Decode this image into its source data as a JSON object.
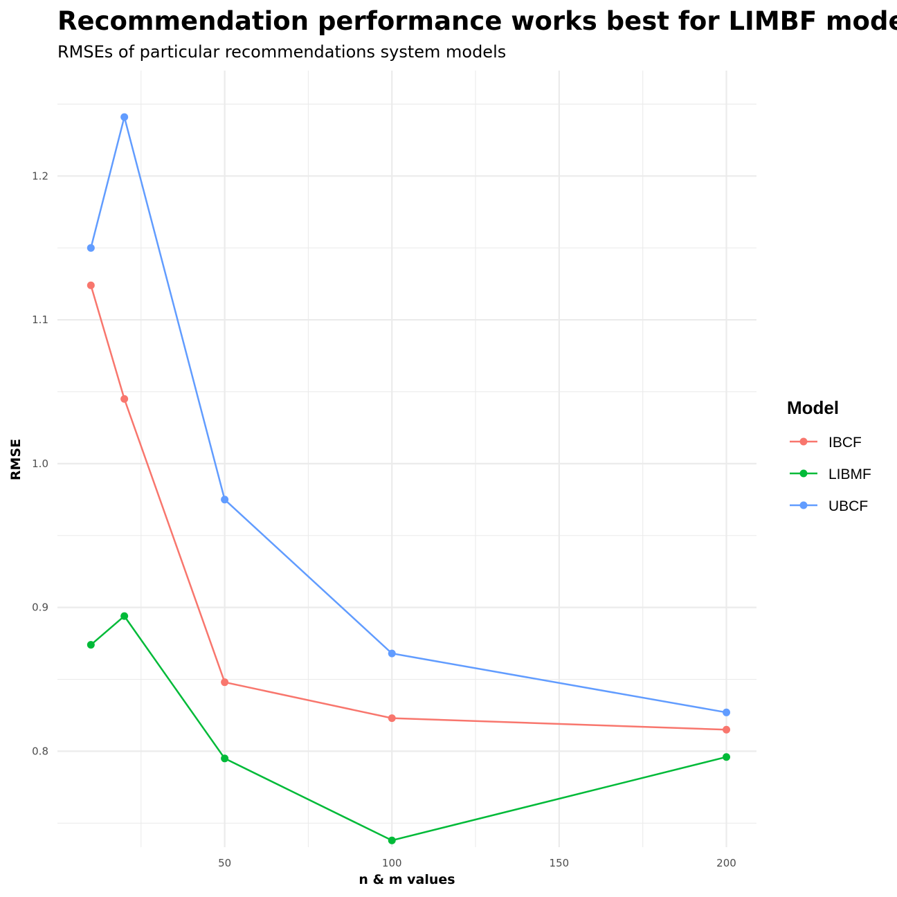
{
  "chart_data": {
    "type": "line",
    "title": "Recommendation performance works best for LIMBF model",
    "subtitle": "RMSEs of particular recommendations system models",
    "xlabel": "n & m values",
    "ylabel": "RMSE",
    "x": [
      10,
      20,
      50,
      100,
      200
    ],
    "xlim": [
      0,
      209
    ],
    "ylim": [
      0.7333,
      1.2733
    ],
    "x_ticks": [
      50,
      100,
      150,
      200
    ],
    "x_minor_ticks": [
      25,
      75,
      125,
      175
    ],
    "y_ticks": [
      0.8,
      0.9,
      1.0,
      1.1,
      1.2
    ],
    "y_minor_ticks": [
      0.75,
      0.85,
      0.95,
      1.05,
      1.15,
      1.25
    ],
    "x_tick_labels": [
      "50",
      "100",
      "150",
      "200"
    ],
    "y_tick_labels": [
      "0.8",
      "0.9",
      "1.0",
      "1.1",
      "1.2"
    ],
    "grid": true,
    "legend_title": "Model",
    "legend_position": "right",
    "series": [
      {
        "name": "IBCF",
        "color": "#F8766D",
        "values": [
          1.124,
          1.045,
          0.848,
          0.823,
          0.815
        ]
      },
      {
        "name": "LIBMF",
        "color": "#00BA38",
        "values": [
          0.874,
          0.894,
          0.795,
          0.738,
          0.796
        ]
      },
      {
        "name": "UBCF",
        "color": "#619CFF",
        "values": [
          1.15,
          1.241,
          0.975,
          0.868,
          0.827
        ]
      }
    ]
  }
}
